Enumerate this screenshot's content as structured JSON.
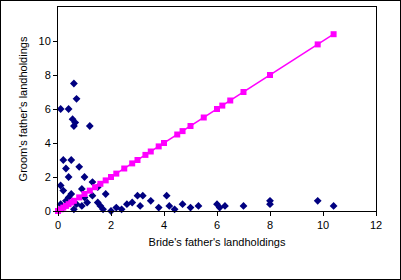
{
  "chart_data": {
    "type": "scatter",
    "x_label": "Bride's father's landholdings",
    "y_label": "Groom's father's landholdings",
    "xlim": [
      0,
      12
    ],
    "xticks": [
      0,
      2,
      4,
      6,
      8,
      10,
      12
    ],
    "ylim": [
      0,
      12
    ],
    "yticks": [
      0,
      2,
      4,
      6,
      8,
      10
    ],
    "grid": false,
    "series": [
      {
        "type": "scatter",
        "color": "#000080",
        "marker": "diamond",
        "x": [
          0.6,
          0.1,
          0.4,
          0.55,
          0.65,
          0.6,
          1.2,
          0.7,
          0.2,
          0.5,
          0.3,
          0.8,
          1.0,
          0.4,
          1.3,
          1.8,
          1.3,
          0.1,
          0.2,
          0.5,
          0.9,
          0.3,
          0.7,
          1.1,
          1.5,
          0.2,
          0.6,
          1.6,
          2.0,
          1.7,
          2.2,
          2.6,
          3.0,
          3.2,
          3.5,
          3.1,
          4.1,
          4.2,
          4.7,
          5.0,
          5.3,
          6.0,
          6.1,
          6.3,
          7.0,
          8.0,
          8.0,
          9.8,
          10.4,
          2.8,
          1.5,
          2.4,
          3.8,
          4.4,
          1.0,
          0.9,
          0.4,
          0.1
        ],
        "values": [
          7.5,
          6.0,
          6.0,
          5.4,
          5.2,
          5.0,
          5.0,
          6.6,
          3.0,
          3.0,
          2.5,
          2.6,
          2.0,
          2.0,
          1.7,
          1.0,
          0.9,
          1.5,
          1.2,
          1.0,
          1.3,
          0.6,
          0.4,
          0.5,
          1.4,
          0.2,
          0.1,
          0.3,
          0.0,
          0.1,
          0.2,
          0.4,
          0.9,
          0.9,
          0.6,
          0.3,
          0.9,
          0.3,
          0.4,
          0.2,
          0.3,
          0.4,
          0.2,
          0.3,
          0.3,
          0.6,
          0.4,
          0.6,
          0.3,
          0.5,
          0.5,
          0.1,
          0.2,
          0.1,
          0.8,
          0.3,
          0.8,
          0.4
        ]
      },
      {
        "type": "line",
        "color": "#ff00ff",
        "marker": "square",
        "line_style": "solid",
        "x": [
          0,
          0.1,
          0.2,
          0.3,
          0.4,
          0.5,
          0.6,
          0.8,
          1.0,
          1.2,
          1.4,
          1.6,
          1.8,
          2.0,
          2.2,
          2.5,
          2.8,
          3.0,
          3.3,
          3.5,
          3.8,
          4.0,
          4.5,
          4.7,
          5.0,
          5.5,
          6.0,
          6.2,
          6.5,
          7.0,
          8.0,
          9.8,
          10.4
        ],
        "values": [
          0,
          0.1,
          0.2,
          0.3,
          0.4,
          0.5,
          0.6,
          0.8,
          1.0,
          1.2,
          1.4,
          1.6,
          1.8,
          2.0,
          2.2,
          2.5,
          2.8,
          3.0,
          3.3,
          3.5,
          3.8,
          4.0,
          4.5,
          4.7,
          5.0,
          5.5,
          6.0,
          6.2,
          6.5,
          7.0,
          8.0,
          9.8,
          10.4
        ]
      }
    ]
  }
}
